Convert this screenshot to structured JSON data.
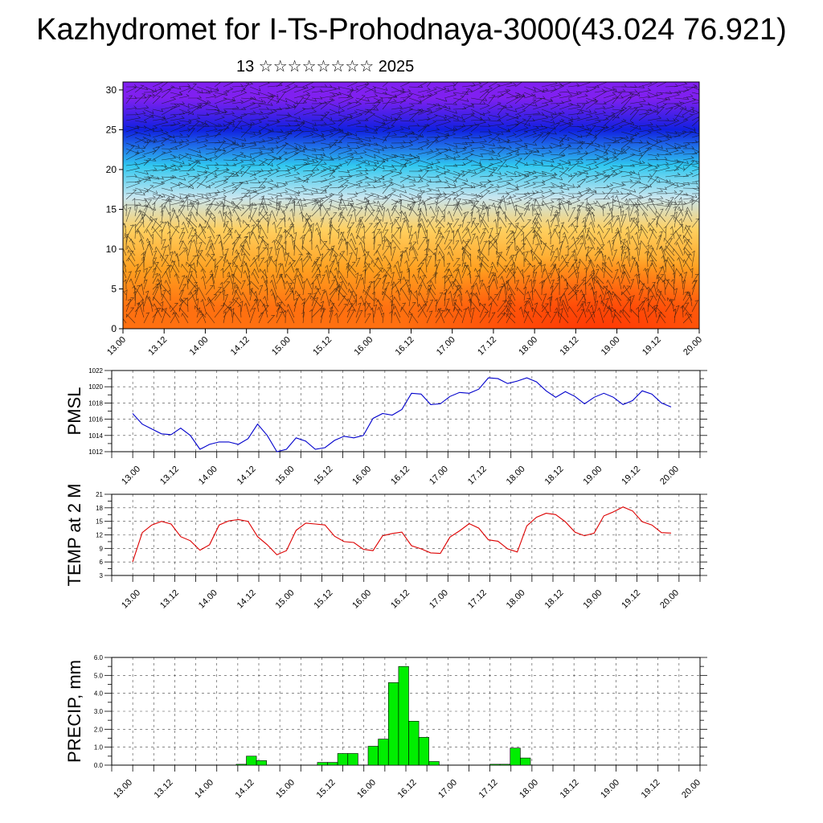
{
  "title": "Kazhydromet for I-Ts-Prohodnaya-3000(43.024 76.921)",
  "subtitle": "13 ☆☆☆☆☆☆☆☆ 2025",
  "colors": {
    "pmsl_line": "#0000cc",
    "temp_line": "#dd0000",
    "precip_bar": "#00ee00",
    "precip_outline": "#000000"
  },
  "chart_data": [
    {
      "type": "heatmap",
      "name": "cross-section",
      "description_ylabel": "",
      "x_tick_labels": [
        "13.00",
        "13.12",
        "14.00",
        "14.12",
        "15.00",
        "15.12",
        "16.00",
        "16.12",
        "17.00",
        "17.12",
        "18.00",
        "18.12",
        "19.00",
        "19.12",
        "20.00"
      ],
      "y_tick_labels": [
        "0",
        "5",
        "10",
        "15",
        "20",
        "25",
        "30"
      ],
      "ylim": [
        0,
        31
      ],
      "overlay": "wind barbs",
      "color_layers": [
        {
          "from": 0,
          "to": 5,
          "color": "#ff7010"
        },
        {
          "from": 5,
          "to": 10,
          "color": "#ffa020"
        },
        {
          "from": 10,
          "to": 15,
          "color": "#ffd060"
        },
        {
          "from": 15,
          "to": 18,
          "color": "#c8e6f0"
        },
        {
          "from": 18,
          "to": 23,
          "color": "#30c8f0"
        },
        {
          "from": 23,
          "to": 27,
          "color": "#1020e0"
        },
        {
          "from": 27,
          "to": 31,
          "color": "#8020f0"
        }
      ]
    },
    {
      "type": "line",
      "ylabel": "PMSL",
      "ylim": [
        1012,
        1022
      ],
      "y_ticks": [
        "1012",
        "1014",
        "1016",
        "1018",
        "1020",
        "1022"
      ],
      "x_tick_labels": [
        "13.00",
        "13.12",
        "14.00",
        "14.12",
        "15.00",
        "15.12",
        "16.00",
        "16.12",
        "17.00",
        "17.12",
        "18.00",
        "18.12",
        "19.00",
        "19.12",
        "20.00"
      ],
      "series": [
        {
          "values": [
            1016.7,
            1015.4,
            1014.8,
            1014.2,
            1014.1,
            1014.9,
            1014.0,
            1012.3,
            1012.9,
            1013.2,
            1013.2,
            1012.9,
            1013.6,
            1015.4,
            1014.0,
            1012.0,
            1012.3,
            1013.7,
            1013.3,
            1012.3,
            1012.5,
            1013.4,
            1013.9,
            1013.7,
            1014.0,
            1016.1,
            1016.7,
            1016.5,
            1017.2,
            1019.2,
            1019.1,
            1017.8,
            1017.9,
            1018.8,
            1019.3,
            1019.2,
            1019.7,
            1021.1,
            1021.0,
            1020.4,
            1020.7,
            1021.1,
            1020.6,
            1019.5,
            1018.7,
            1019.4,
            1018.8,
            1017.9,
            1018.7,
            1019.2,
            1018.7,
            1017.8,
            1018.3,
            1019.5,
            1019.1,
            1018.0,
            1017.5
          ]
        }
      ]
    },
    {
      "type": "line",
      "ylabel": "TEMP at 2 M",
      "ylim": [
        3,
        21
      ],
      "y_ticks": [
        "3",
        "6",
        "9",
        "12",
        "15",
        "18",
        "21"
      ],
      "x_tick_labels": [
        "13.00",
        "13.12",
        "14.00",
        "14.12",
        "15.00",
        "15.12",
        "16.00",
        "16.12",
        "17.00",
        "17.12",
        "18.00",
        "18.12",
        "19.00",
        "19.12",
        "20.00"
      ],
      "series": [
        {
          "values": [
            6.0,
            12.5,
            14.2,
            15.0,
            14.4,
            11.6,
            10.7,
            8.6,
            9.8,
            14.2,
            15.1,
            15.4,
            15.0,
            11.6,
            9.8,
            7.6,
            8.5,
            13.0,
            14.6,
            14.4,
            14.2,
            11.7,
            10.5,
            10.3,
            8.8,
            8.5,
            11.8,
            12.3,
            12.6,
            9.6,
            8.9,
            8.0,
            7.9,
            11.5,
            12.9,
            14.5,
            13.5,
            10.9,
            10.6,
            8.9,
            8.2,
            14.0,
            15.9,
            16.8,
            16.5,
            14.9,
            12.6,
            11.8,
            12.4,
            16.2,
            17.1,
            18.2,
            17.3,
            14.9,
            14.2,
            12.5,
            12.4
          ]
        }
      ]
    },
    {
      "type": "bar",
      "ylabel": "PRECIP, mm",
      "ylim": [
        0,
        6
      ],
      "y_ticks": [
        "0.0",
        "1.0",
        "2.0",
        "3.0",
        "4.0",
        "5.0",
        "6.0"
      ],
      "x_tick_labels": [
        "13.00",
        "13.12",
        "14.00",
        "14.12",
        "15.00",
        "15.12",
        "16.00",
        "16.12",
        "17.00",
        "17.12",
        "18.00",
        "18.12",
        "19.00",
        "19.12",
        "20.00"
      ],
      "values": [
        0,
        0,
        0,
        0,
        0,
        0,
        0,
        0,
        0,
        0,
        0,
        0.05,
        0.5,
        0.25,
        0,
        0,
        0,
        0,
        0,
        0.15,
        0.15,
        0.65,
        0.65,
        0,
        1.05,
        1.45,
        4.6,
        5.5,
        2.45,
        1.55,
        0.2,
        0,
        0,
        0,
        0,
        0,
        0.05,
        0.05,
        0.95,
        0.4,
        0,
        0,
        0,
        0,
        0,
        0,
        0,
        0,
        0,
        0,
        0,
        0,
        0,
        0,
        0,
        0,
        0
      ]
    }
  ]
}
